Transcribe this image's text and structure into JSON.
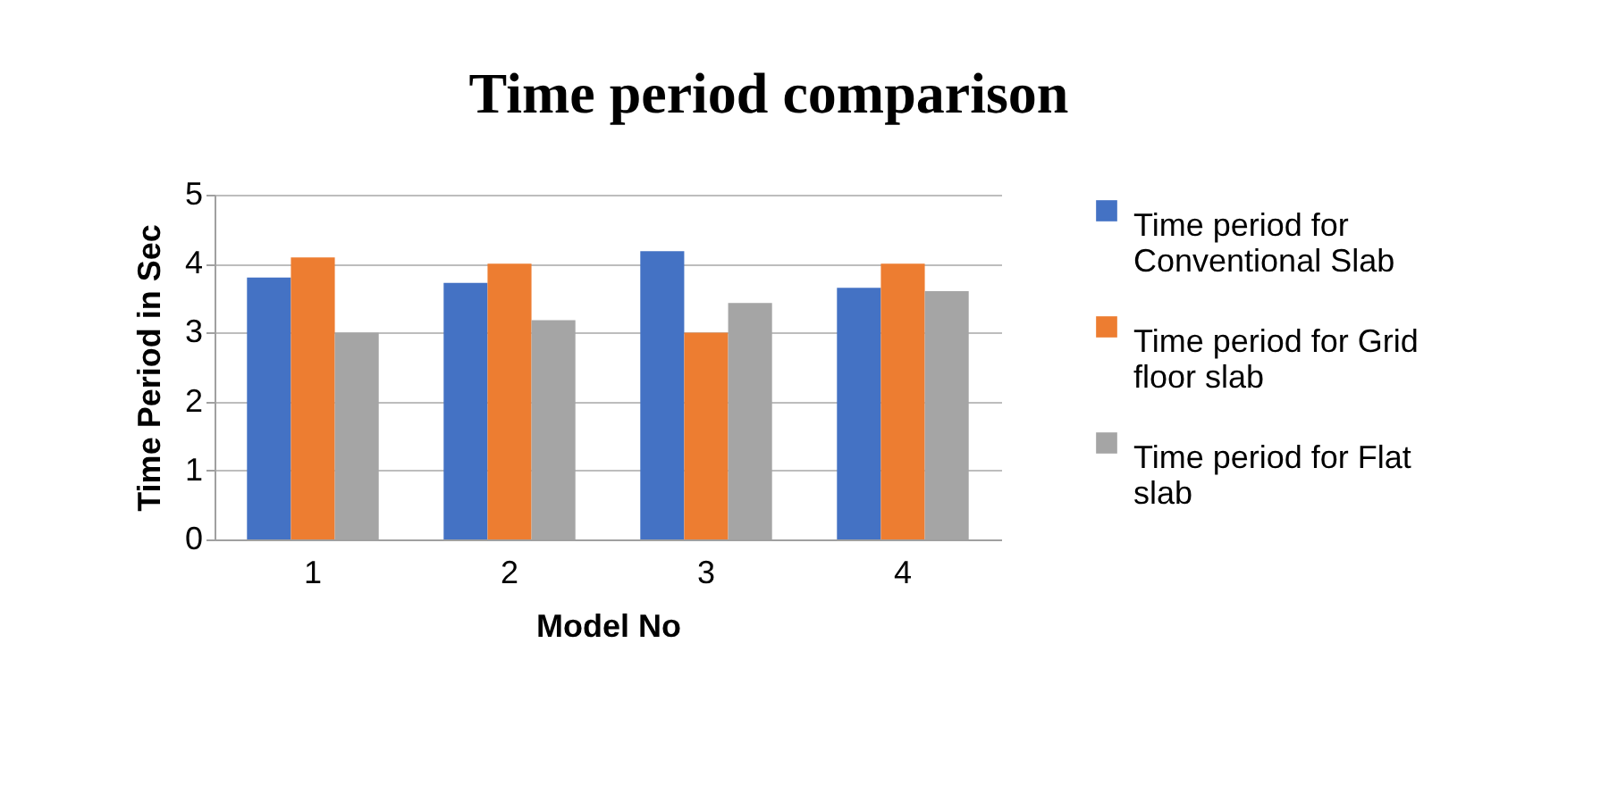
{
  "chart_data": {
    "type": "bar",
    "title": "Time period comparison",
    "xlabel": "Model No",
    "ylabel": "Time Period in Sec",
    "categories": [
      "1",
      "2",
      "3",
      "4"
    ],
    "series": [
      {
        "name": "Time period for Conventional Slab",
        "color": "#4472c4",
        "values": [
          3.8,
          3.72,
          4.18,
          3.65
        ]
      },
      {
        "name": "Time period for Grid floor slab",
        "color": "#ed7d31",
        "values": [
          4.09,
          4.0,
          3.0,
          4.0
        ]
      },
      {
        "name": "Time period for Flat slab",
        "color": "#a5a5a5",
        "values": [
          3.0,
          3.18,
          3.43,
          3.6
        ]
      }
    ],
    "ylim": [
      0,
      5
    ],
    "yticks": [
      0,
      1,
      2,
      3,
      4,
      5
    ],
    "grid": "y",
    "legend": "right"
  }
}
